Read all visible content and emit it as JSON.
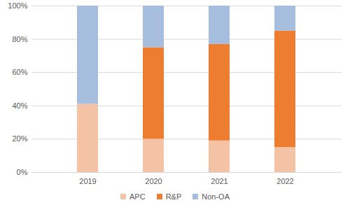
{
  "chart_data": {
    "type": "bar",
    "stacked": true,
    "categories": [
      "2019",
      "2020",
      "2021",
      "2022"
    ],
    "series": [
      {
        "name": "APC",
        "color": "#f4c3a6",
        "values": [
          41,
          20,
          19,
          15
        ]
      },
      {
        "name": "R&P",
        "color": "#ed7d31",
        "values": [
          0,
          55,
          58,
          70
        ]
      },
      {
        "name": "Non-OA",
        "color": "#a6bddd",
        "values": [
          59,
          25,
          23,
          15
        ]
      }
    ],
    "ylim": [
      0,
      100
    ],
    "yticks": [
      {
        "value": 0,
        "label": "0%"
      },
      {
        "value": 20,
        "label": "20%"
      },
      {
        "value": 40,
        "label": "40%"
      },
      {
        "value": 60,
        "label": "60%"
      },
      {
        "value": 80,
        "label": "80%"
      },
      {
        "value": 100,
        "label": "100%"
      }
    ],
    "grid": true,
    "legend": "bottom"
  }
}
